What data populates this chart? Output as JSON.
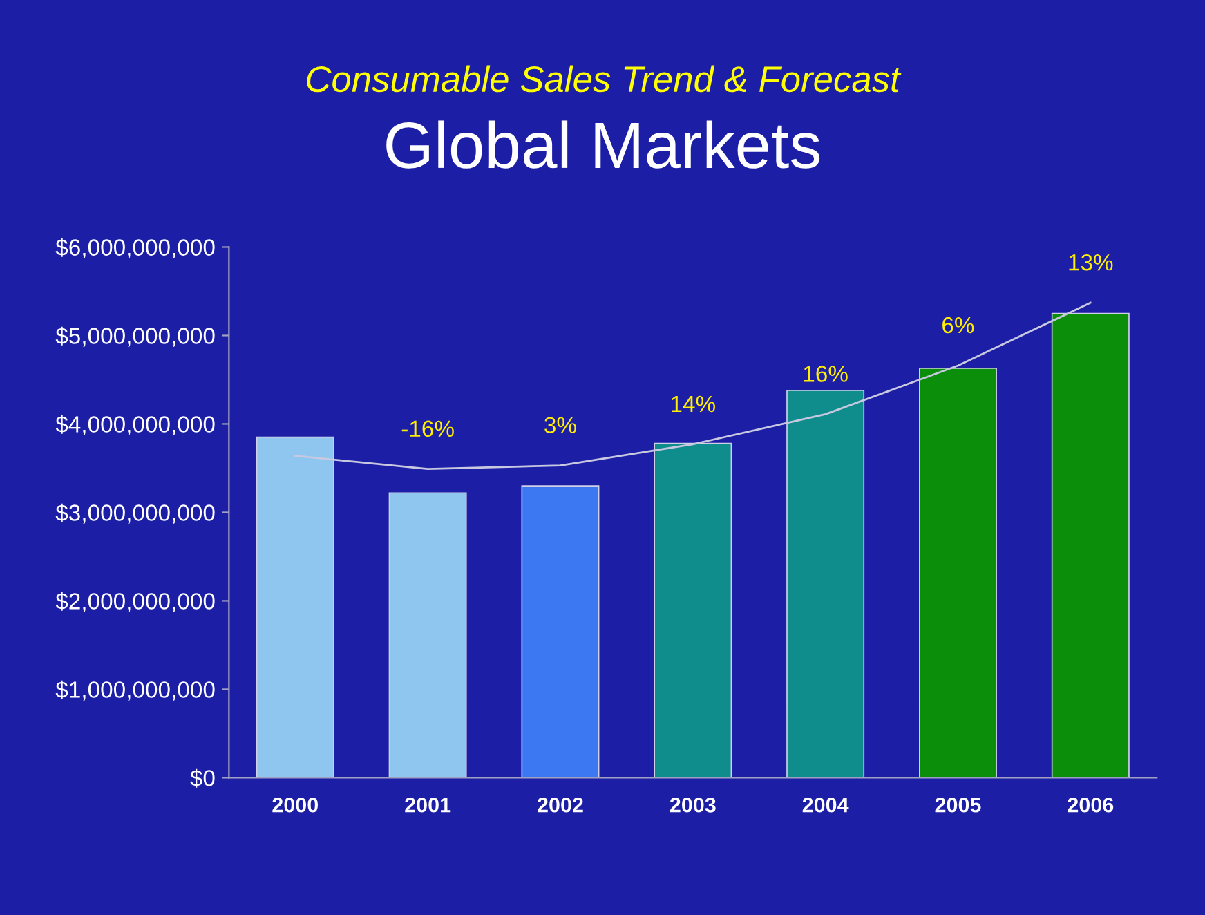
{
  "chart_data": {
    "type": "bar",
    "title": "Consumable Sales Trend & Forecast",
    "subtitle": "Global Markets",
    "categories": [
      "2000",
      "2001",
      "2002",
      "2003",
      "2004",
      "2005",
      "2006"
    ],
    "series": [
      {
        "values": [
          3850000000,
          3220000000,
          3300000000,
          3780000000,
          4380000000,
          4630000000,
          5250000000
        ],
        "colors": [
          "#8fc6f0",
          "#8fc6f0",
          "#3b78f2",
          "#0f8c8c",
          "#0f8c8c",
          "#0b8f0b",
          "#0b8f0b"
        ]
      },
      {
        "type": "line",
        "color": "#c8c8e0",
        "values": [
          3640000000,
          3490000000,
          3530000000,
          3770000000,
          4110000000,
          4660000000,
          5370000000
        ]
      }
    ],
    "ylim": [
      0,
      6000000000
    ],
    "yticks": [
      {
        "value": 0,
        "label": "$0"
      },
      {
        "value": 1000000000,
        "label": "$1,000,000,000"
      },
      {
        "value": 2000000000,
        "label": "$2,000,000,000"
      },
      {
        "value": 3000000000,
        "label": "$3,000,000,000"
      },
      {
        "value": 4000000000,
        "label": "$4,000,000,000"
      },
      {
        "value": 5000000000,
        "label": "$5,000,000,000"
      },
      {
        "value": 6000000000,
        "label": "$6,000,000,000"
      }
    ],
    "annotations": [
      {
        "text": "-16%",
        "x": "2001",
        "y": 3490000000
      },
      {
        "text": "3%",
        "x": "2002",
        "y": 3530000000
      },
      {
        "text": "14%",
        "x": "2003",
        "y": 3770000000
      },
      {
        "text": "16%",
        "x": "2004",
        "y": 4110000000
      },
      {
        "text": "6%",
        "x": "2005",
        "y": 4660000000
      },
      {
        "text": "13%",
        "x": "2006",
        "y": 5370000000
      }
    ],
    "grid": false,
    "legend": false
  }
}
